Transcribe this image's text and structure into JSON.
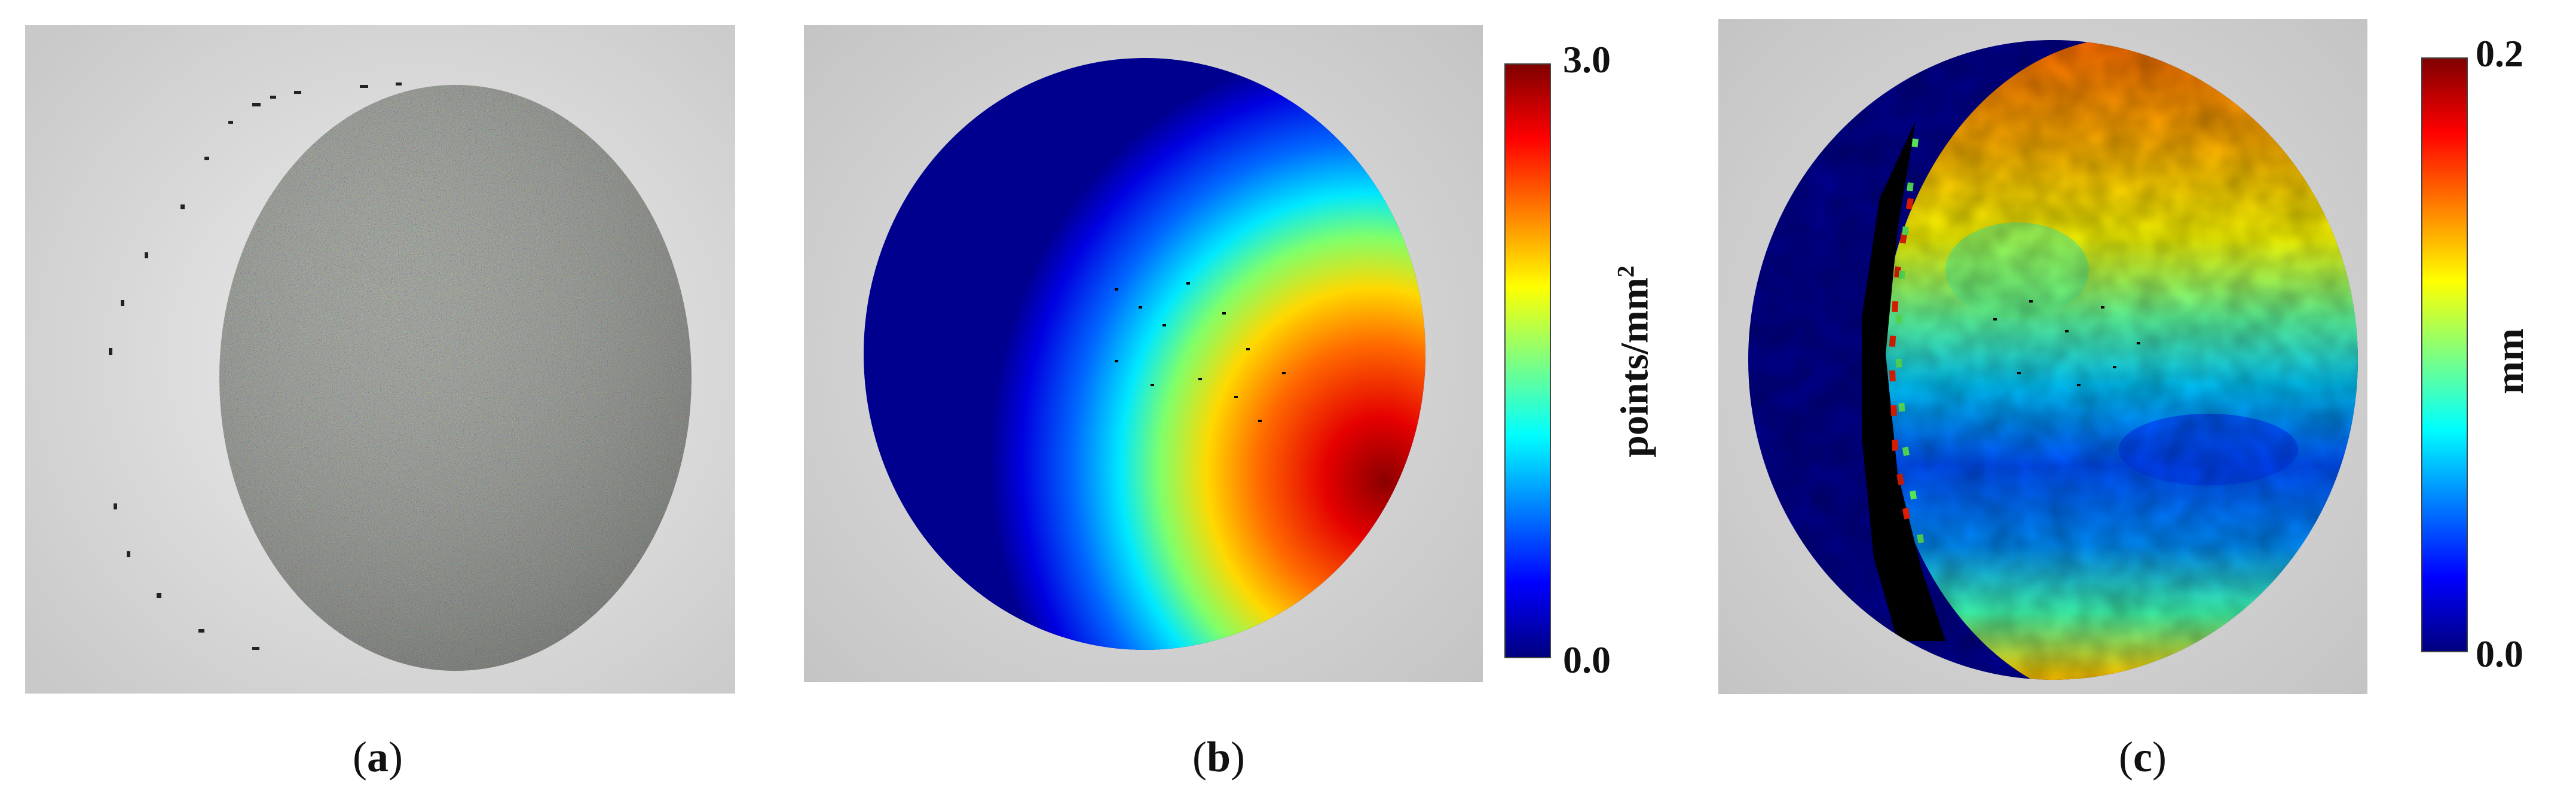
{
  "panels": [
    {
      "caption_open": "(",
      "caption_letter": "a",
      "caption_close": ")"
    },
    {
      "caption_open": "(",
      "caption_letter": "b",
      "caption_close": ")",
      "colorbar": {
        "max": "3.0",
        "min": "0.0",
        "unit_main": "points/mm",
        "unit_sup": "2",
        "colormap": [
          "#00007f",
          "#0000ff",
          "#007fff",
          "#00ffff",
          "#7fff7f",
          "#ffff00",
          "#ff7f00",
          "#ff0000",
          "#7f0000"
        ]
      }
    },
    {
      "caption_open": "(",
      "caption_letter": "c",
      "caption_close": ")",
      "colorbar": {
        "max": "0.2",
        "min": "0.0",
        "unit_main": "mm",
        "colormap": [
          "#00007f",
          "#0000ff",
          "#007fff",
          "#00ffff",
          "#7fff7f",
          "#ffff00",
          "#ff7f00",
          "#ff0000",
          "#7f0000"
        ]
      }
    }
  ],
  "colors": {
    "background": "#d6d6d6",
    "dark_blue": "#00008e"
  }
}
